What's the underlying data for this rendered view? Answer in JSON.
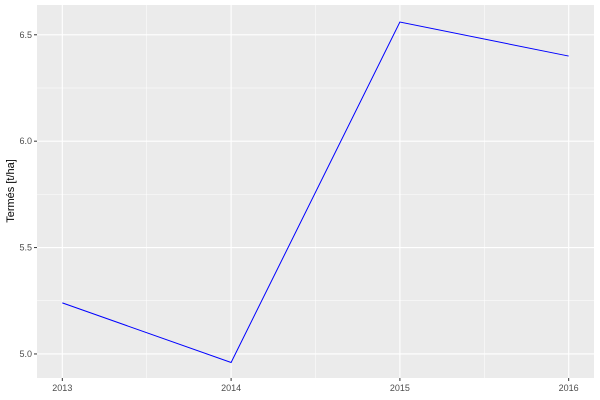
{
  "chart_data": {
    "type": "line",
    "title": "",
    "xlabel": "",
    "ylabel": "Termés [t/ha]",
    "x": [
      2013,
      2014,
      2015,
      2016
    ],
    "series": [
      {
        "values": [
          5.24,
          4.96,
          6.56,
          6.4
        ],
        "color": "#0000ff"
      }
    ],
    "xlim": [
      2012.85,
      2016.15
    ],
    "ylim": [
      4.887,
      6.64
    ],
    "xticks": [
      "2013",
      "2014",
      "2015",
      "2016"
    ],
    "yticks": [
      "5.0",
      "5.5",
      "6.0",
      "6.5"
    ],
    "grid": true,
    "panel_background": "#ebebeb"
  }
}
